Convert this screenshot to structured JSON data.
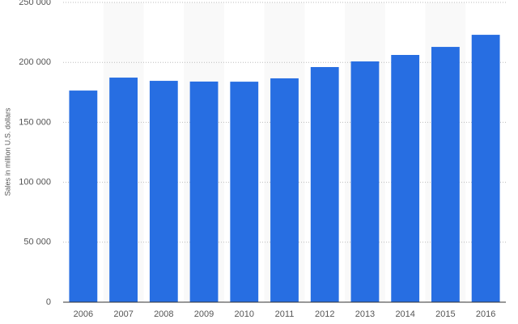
{
  "chart_data": {
    "type": "bar",
    "y_label": "Sales in million U.S. dollars",
    "categories": [
      "2006",
      "2007",
      "2008",
      "2009",
      "2010",
      "2011",
      "2012",
      "2013",
      "2014",
      "2015",
      "2016"
    ],
    "values": [
      176500,
      187300,
      184600,
      184000,
      183900,
      186700,
      196100,
      200800,
      206200,
      212900,
      223000
    ],
    "color": "#276ee2",
    "ylim": [
      0,
      250000
    ],
    "yticks": [
      0,
      {
        "value": 50000,
        "label": "50 000"
      },
      {
        "value": 100000,
        "label": "100 000"
      },
      {
        "value": 150000,
        "label": "150 000"
      },
      {
        "value": 200000,
        "label": "200 000"
      },
      {
        "value": 250000,
        "label": "250 000"
      }
    ],
    "grid": true
  }
}
